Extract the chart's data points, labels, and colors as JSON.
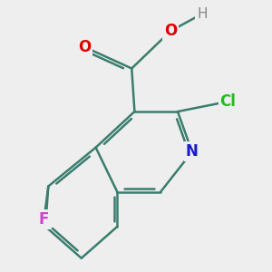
{
  "background_color": "#eeeeee",
  "bond_color": "#3a7d6e",
  "bond_width": 1.8,
  "atom_colors": {
    "N": "#1a1acc",
    "O": "#dd0000",
    "H": "#888888",
    "Cl": "#22bb22",
    "F": "#cc44cc"
  },
  "font_size": 12,
  "figsize": [
    3.0,
    3.0
  ],
  "dpi": 100
}
